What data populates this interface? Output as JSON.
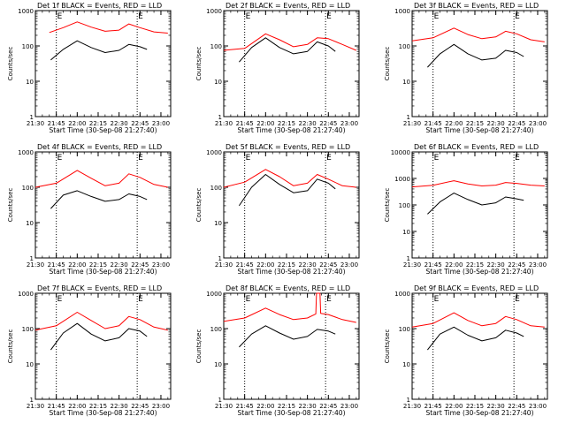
{
  "colors": {
    "background": "#ffffff",
    "events": "#000000",
    "lld": "#ff0000",
    "axis": "#000000"
  },
  "shared": {
    "xlabel": "Start Time (30-Sep-08 21:27:40)",
    "ylabel": "Counts/sec",
    "x_tick_labels": [
      "21:30",
      "21:45",
      "22:00",
      "22:15",
      "22:30",
      "22:45",
      "23:00"
    ],
    "x_markers": [
      "21:45",
      "22:43"
    ],
    "marker_labels": [
      "E",
      "E"
    ]
  },
  "chart_data": [
    {
      "type": "line",
      "title": "Det 1f BLACK = Events, RED = LLD",
      "yscale": "log",
      "ylim": [
        1,
        1000
      ],
      "y_tick_labels": [
        "1",
        "10",
        "100",
        "1000"
      ],
      "xlim": [
        "21:30",
        "23:07"
      ],
      "grid": false,
      "series": [
        {
          "name": "LLD",
          "color": "#ff0000",
          "x": [
            "21:40",
            "21:50",
            "22:00",
            "22:10",
            "22:20",
            "22:30",
            "22:37",
            "22:45",
            "22:55",
            "23:05"
          ],
          "values": [
            240,
            330,
            480,
            340,
            260,
            280,
            420,
            330,
            250,
            230
          ]
        },
        {
          "name": "Events",
          "color": "#000000",
          "x": [
            "21:41",
            "21:50",
            "22:00",
            "22:10",
            "22:20",
            "22:30",
            "22:37",
            "22:45",
            "22:50"
          ],
          "values": [
            40,
            80,
            140,
            90,
            65,
            75,
            110,
            95,
            80
          ]
        }
      ]
    },
    {
      "type": "line",
      "title": "Det 2f BLACK = Events, RED = LLD",
      "yscale": "log",
      "ylim": [
        1,
        1000
      ],
      "y_tick_labels": [
        "1",
        "10",
        "100",
        "1000"
      ],
      "xlim": [
        "21:30",
        "23:07"
      ],
      "grid": false,
      "series": [
        {
          "name": "LLD",
          "color": "#ff0000",
          "x": [
            "21:30",
            "21:45",
            "22:00",
            "22:10",
            "22:20",
            "22:30",
            "22:37",
            "22:45",
            "22:55",
            "23:05"
          ],
          "values": [
            75,
            85,
            220,
            150,
            95,
            110,
            170,
            160,
            110,
            75
          ]
        },
        {
          "name": "Events",
          "color": "#000000",
          "x": [
            "21:41",
            "21:50",
            "22:00",
            "22:10",
            "22:20",
            "22:30",
            "22:37",
            "22:45",
            "22:50"
          ],
          "values": [
            35,
            90,
            170,
            90,
            60,
            70,
            130,
            100,
            70
          ]
        }
      ]
    },
    {
      "type": "line",
      "title": "Det 3f BLACK = Events, RED = LLD",
      "yscale": "log",
      "ylim": [
        1,
        1000
      ],
      "y_tick_labels": [
        "1",
        "10",
        "100",
        "1000"
      ],
      "xlim": [
        "21:30",
        "23:07"
      ],
      "grid": false,
      "series": [
        {
          "name": "LLD",
          "color": "#ff0000",
          "x": [
            "21:30",
            "21:45",
            "22:00",
            "22:10",
            "22:20",
            "22:30",
            "22:37",
            "22:45",
            "22:55",
            "23:05"
          ],
          "values": [
            140,
            170,
            320,
            210,
            160,
            180,
            260,
            220,
            150,
            130
          ]
        },
        {
          "name": "Events",
          "color": "#000000",
          "x": [
            "21:41",
            "21:50",
            "22:00",
            "22:10",
            "22:20",
            "22:30",
            "22:37",
            "22:45",
            "22:50"
          ],
          "values": [
            25,
            60,
            110,
            60,
            40,
            45,
            75,
            65,
            50
          ]
        }
      ]
    },
    {
      "type": "line",
      "title": "Det 4f BLACK = Events, RED = LLD",
      "yscale": "log",
      "ylim": [
        1,
        1000
      ],
      "y_tick_labels": [
        "1",
        "10",
        "100",
        "1000"
      ],
      "xlim": [
        "21:30",
        "23:07"
      ],
      "grid": false,
      "series": [
        {
          "name": "LLD",
          "color": "#ff0000",
          "x": [
            "21:30",
            "21:45",
            "22:00",
            "22:10",
            "22:20",
            "22:30",
            "22:37",
            "22:45",
            "22:55",
            "23:05"
          ],
          "values": [
            100,
            130,
            300,
            180,
            110,
            130,
            240,
            190,
            120,
            100
          ]
        },
        {
          "name": "Events",
          "color": "#000000",
          "x": [
            "21:41",
            "21:50",
            "22:00",
            "22:10",
            "22:20",
            "22:30",
            "22:37",
            "22:45",
            "22:50"
          ],
          "values": [
            25,
            60,
            80,
            55,
            40,
            45,
            65,
            55,
            45
          ]
        }
      ]
    },
    {
      "type": "line",
      "title": "Det 5f BLACK = Events, RED = LLD",
      "yscale": "log",
      "ylim": [
        1,
        1000
      ],
      "y_tick_labels": [
        "1",
        "10",
        "100",
        "1000"
      ],
      "xlim": [
        "21:30",
        "23:07"
      ],
      "grid": false,
      "series": [
        {
          "name": "LLD",
          "color": "#ff0000",
          "x": [
            "21:30",
            "21:45",
            "22:00",
            "22:10",
            "22:20",
            "22:30",
            "22:37",
            "22:45",
            "22:55",
            "23:05"
          ],
          "values": [
            100,
            140,
            320,
            200,
            110,
            130,
            230,
            170,
            110,
            100
          ]
        },
        {
          "name": "Events",
          "color": "#000000",
          "x": [
            "21:41",
            "21:50",
            "22:00",
            "22:10",
            "22:20",
            "22:30",
            "22:37",
            "22:45",
            "22:50"
          ],
          "values": [
            30,
            100,
            230,
            120,
            70,
            80,
            170,
            130,
            90
          ]
        }
      ]
    },
    {
      "type": "line",
      "title": "Det 6f BLACK = Events, RED = LLD",
      "yscale": "log",
      "ylim": [
        1,
        10000
      ],
      "y_tick_labels": [
        "1",
        "10",
        "100",
        "1000",
        "10000"
      ],
      "xlim": [
        "21:30",
        "23:07"
      ],
      "grid": false,
      "series": [
        {
          "name": "LLD",
          "color": "#ff0000",
          "x": [
            "21:30",
            "21:45",
            "22:00",
            "22:10",
            "22:20",
            "22:30",
            "22:37",
            "22:45",
            "22:55",
            "23:05"
          ],
          "values": [
            480,
            550,
            820,
            620,
            520,
            560,
            700,
            650,
            560,
            520
          ]
        },
        {
          "name": "Events",
          "color": "#000000",
          "x": [
            "21:41",
            "21:50",
            "22:00",
            "22:10",
            "22:20",
            "22:30",
            "22:37",
            "22:45",
            "22:50"
          ],
          "values": [
            45,
            130,
            280,
            160,
            100,
            120,
            200,
            170,
            150
          ]
        }
      ]
    },
    {
      "type": "line",
      "title": "Det 7f BLACK = Events, RED = LLD",
      "yscale": "log",
      "ylim": [
        1,
        1000
      ],
      "y_tick_labels": [
        "1",
        "10",
        "100",
        "1000"
      ],
      "xlim": [
        "21:30",
        "23:07"
      ],
      "grid": false,
      "series": [
        {
          "name": "LLD",
          "color": "#ff0000",
          "x": [
            "21:30",
            "21:45",
            "22:00",
            "22:10",
            "22:20",
            "22:30",
            "22:37",
            "22:45",
            "22:55",
            "23:05"
          ],
          "values": [
            90,
            120,
            290,
            170,
            100,
            120,
            220,
            180,
            110,
            90
          ]
        },
        {
          "name": "Events",
          "color": "#000000",
          "x": [
            "21:41",
            "21:50",
            "22:00",
            "22:10",
            "22:20",
            "22:30",
            "22:37",
            "22:45",
            "22:50"
          ],
          "values": [
            25,
            75,
            140,
            70,
            45,
            55,
            100,
            85,
            60
          ]
        }
      ]
    },
    {
      "type": "line",
      "title": "Det 8f BLACK = Events, RED = LLD",
      "yscale": "log",
      "ylim": [
        1,
        1000
      ],
      "y_tick_labels": [
        "1",
        "10",
        "100",
        "1000"
      ],
      "xlim": [
        "21:30",
        "23:07"
      ],
      "grid": false,
      "series": [
        {
          "name": "LLD",
          "color": "#ff0000",
          "x": [
            "21:30",
            "21:45",
            "22:00",
            "22:10",
            "22:20",
            "22:30",
            "22:36",
            "22:36.5",
            "22:39",
            "22:39.5",
            "22:45",
            "22:55",
            "23:05"
          ],
          "values": [
            160,
            200,
            380,
            250,
            180,
            200,
            260,
            1000,
            1000,
            270,
            250,
            180,
            150
          ]
        },
        {
          "name": "Events",
          "color": "#000000",
          "x": [
            "21:41",
            "21:50",
            "22:00",
            "22:10",
            "22:20",
            "22:30",
            "22:37",
            "22:45",
            "22:50"
          ],
          "values": [
            30,
            70,
            120,
            75,
            50,
            60,
            95,
            85,
            70
          ]
        }
      ]
    },
    {
      "type": "line",
      "title": "Det 9f BLACK = Events, RED = LLD",
      "yscale": "log",
      "ylim": [
        1,
        1000
      ],
      "y_tick_labels": [
        "1",
        "10",
        "100",
        "1000"
      ],
      "xlim": [
        "21:30",
        "23:07"
      ],
      "grid": false,
      "series": [
        {
          "name": "LLD",
          "color": "#ff0000",
          "x": [
            "21:30",
            "21:45",
            "22:00",
            "22:10",
            "22:20",
            "22:30",
            "22:37",
            "22:45",
            "22:55",
            "23:05"
          ],
          "values": [
            110,
            140,
            280,
            170,
            120,
            140,
            220,
            180,
            120,
            110
          ]
        },
        {
          "name": "Events",
          "color": "#000000",
          "x": [
            "21:41",
            "21:50",
            "22:00",
            "22:10",
            "22:20",
            "22:30",
            "22:37",
            "22:45",
            "22:50"
          ],
          "values": [
            25,
            70,
            110,
            65,
            45,
            55,
            90,
            75,
            60
          ]
        }
      ]
    }
  ]
}
